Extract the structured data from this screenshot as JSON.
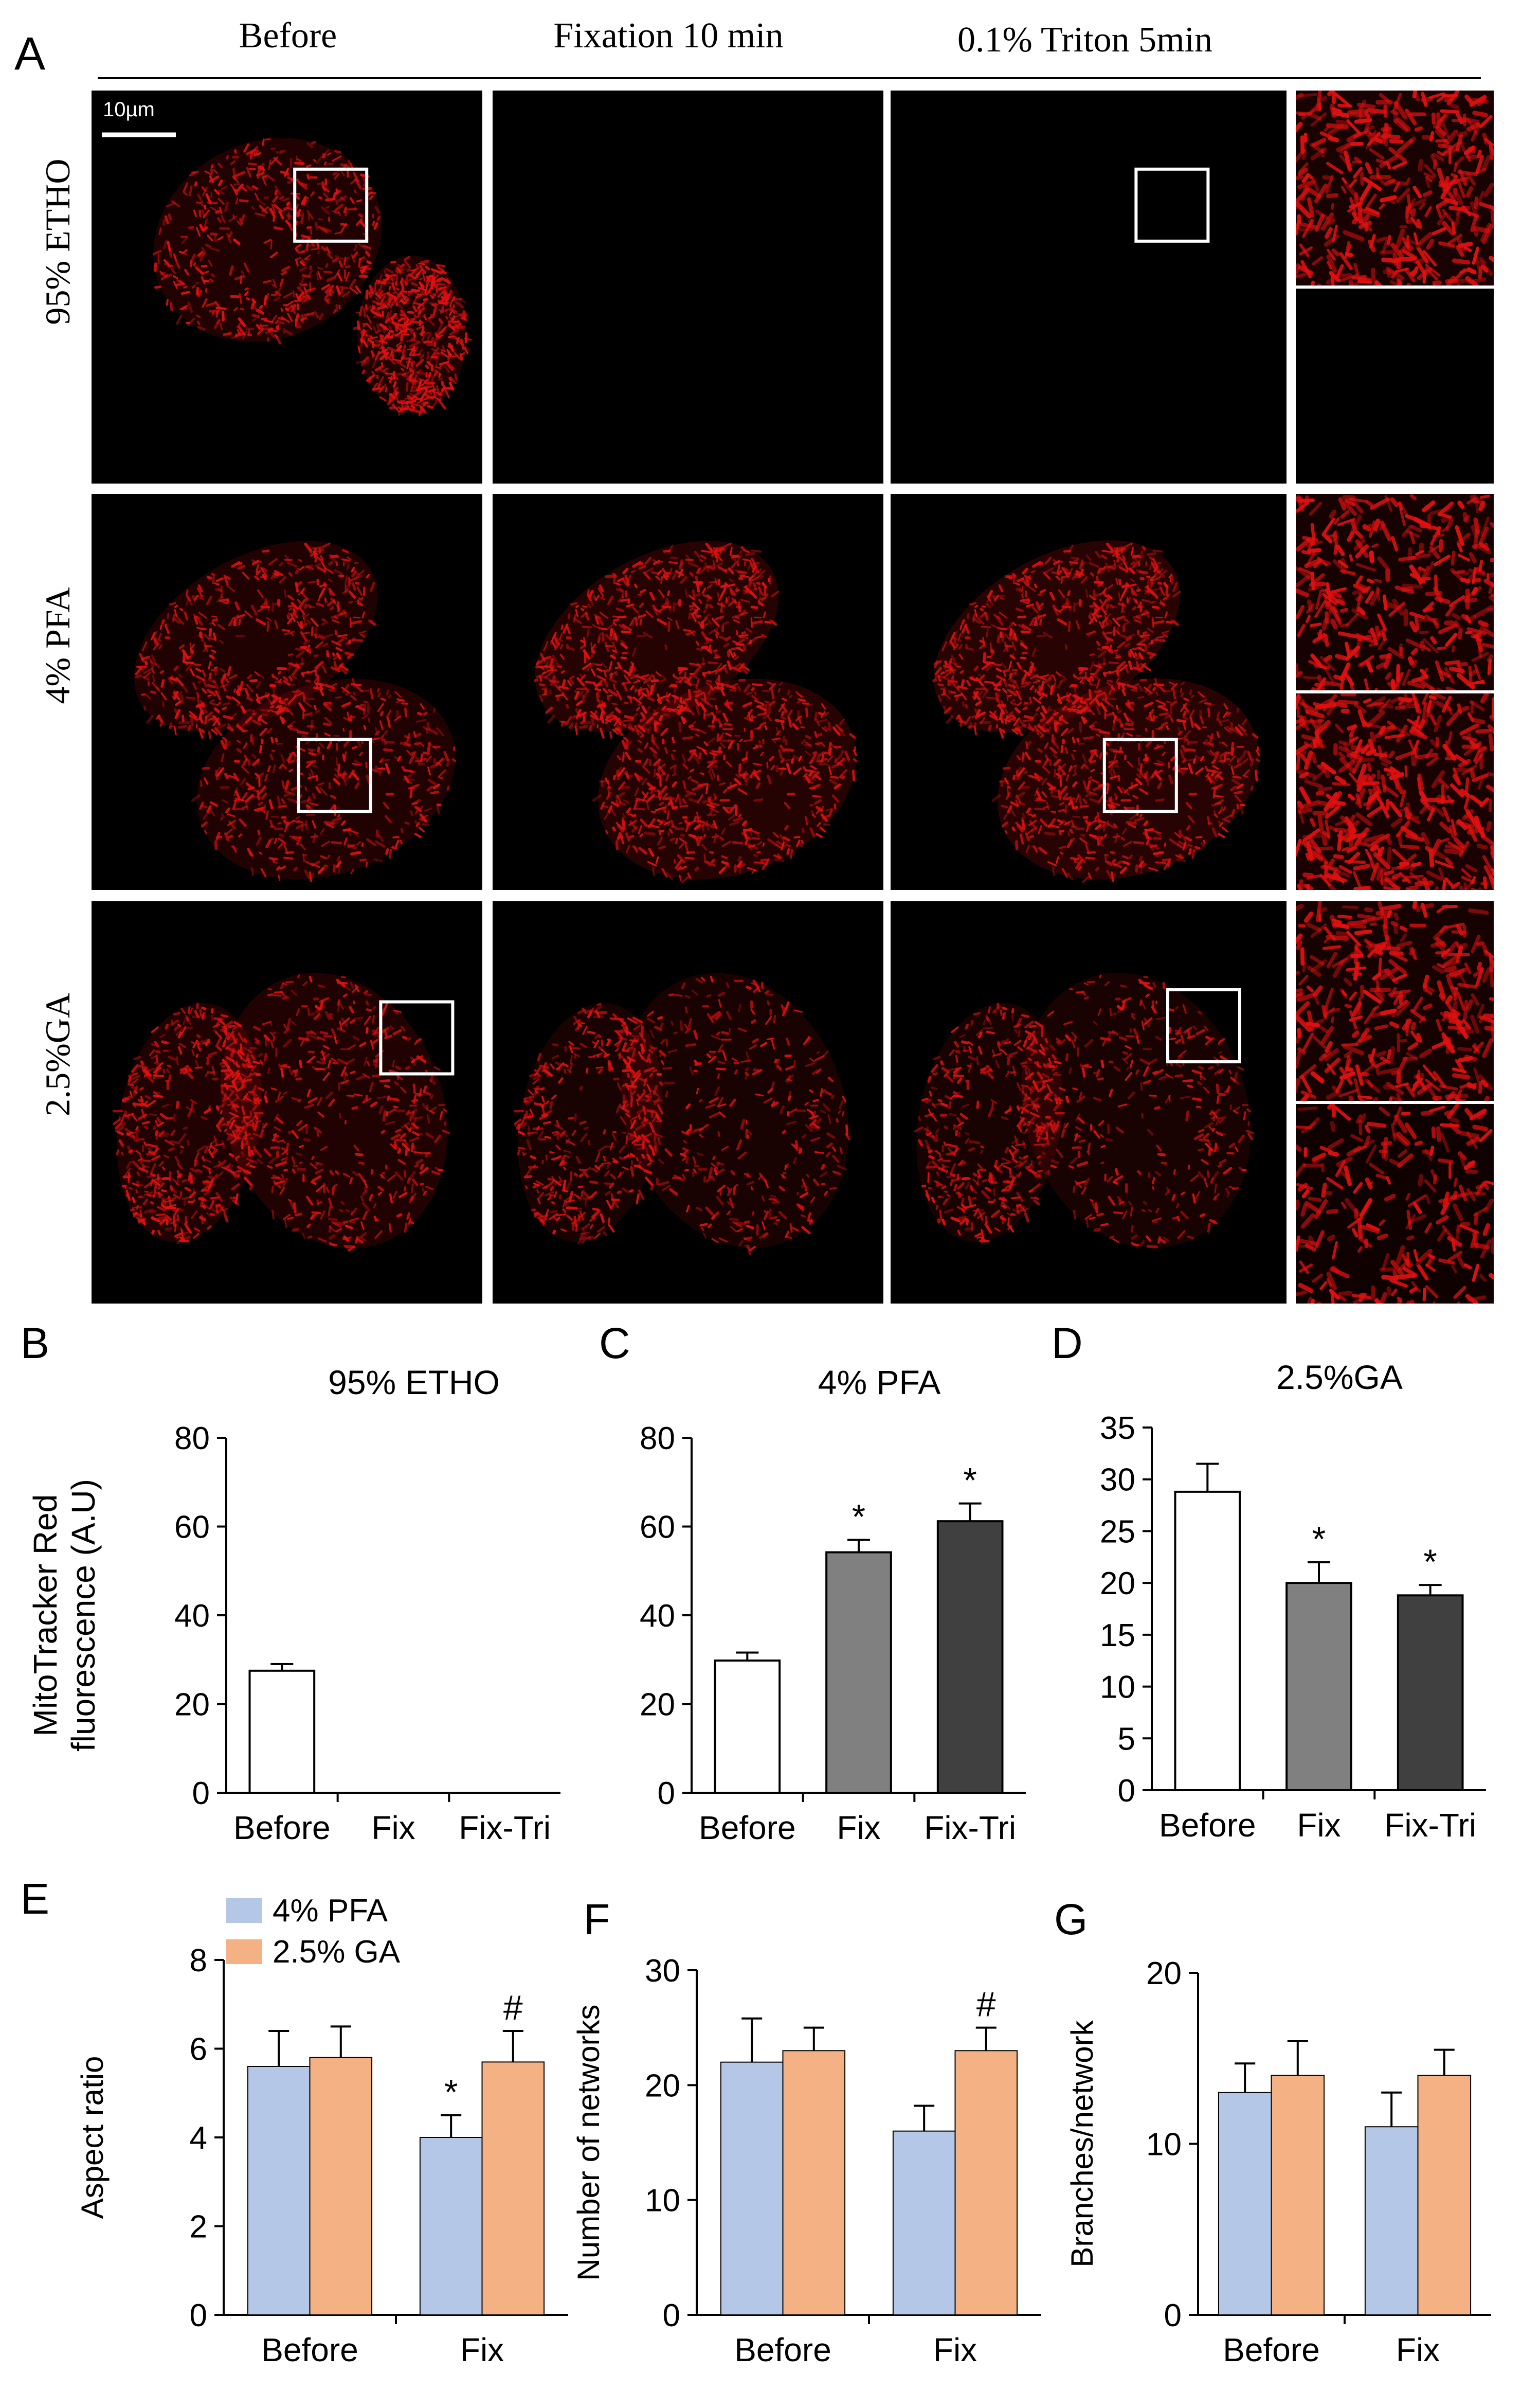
{
  "figure": {
    "panel_letters": {
      "A": "A",
      "B": "B",
      "C": "C",
      "D": "D",
      "E": "E",
      "F": "F",
      "G": "G"
    },
    "microscopy": {
      "columns": [
        "Before",
        "Fixation 10 min",
        "0.1% Triton 5min"
      ],
      "rows": [
        "95% ETHO",
        "4% PFA",
        "2.5%GA"
      ],
      "scale_bar": "10µm",
      "colors": {
        "stain": "#e01010",
        "background": "#000000",
        "box": "#ffffff"
      },
      "row_signal": [
        {
          "before": 0.8,
          "fixation": 0.0,
          "triton": 0.0,
          "inset_top": 0.9,
          "inset_bottom": 0.0
        },
        {
          "before": 0.75,
          "fixation": 0.95,
          "triton": 1.0,
          "inset_top": 0.8,
          "inset_bottom": 1.0
        },
        {
          "before": 0.8,
          "fixation": 0.6,
          "triton": 0.6,
          "inset_top": 0.8,
          "inset_bottom": 0.55
        }
      ]
    },
    "ylabel_shared": "MitoTracker Red fluorescence (A.U)",
    "legend": [
      "4% PFA",
      "2.5% GA"
    ]
  },
  "chart_data": [
    {
      "panel": "B",
      "type": "bar",
      "title": "95% ETHO",
      "ylabel": "MitoTracker Red fluorescence (A.U)",
      "ylabel_lines": [
        "MitoTracker Red",
        "fluorescence (A.U)"
      ],
      "categories": [
        "Before",
        "Fix",
        "Fix-Tri"
      ],
      "values": [
        27.5,
        0,
        0
      ],
      "errors": [
        1.5,
        0,
        0
      ],
      "bar_colors": [
        "#ffffff",
        "#ffffff",
        "#ffffff"
      ],
      "ylim": [
        0,
        80
      ],
      "yticks": [
        0,
        20,
        40,
        60,
        80
      ],
      "annotations": [
        "",
        "",
        ""
      ]
    },
    {
      "panel": "C",
      "type": "bar",
      "title": "4% PFA",
      "ylabel": "",
      "categories": [
        "Before",
        "Fix",
        "Fix-Tri"
      ],
      "values": [
        29.8,
        54.2,
        61.2
      ],
      "errors": [
        1.8,
        2.8,
        4.0
      ],
      "bar_colors": [
        "#ffffff",
        "#808080",
        "#404040"
      ],
      "ylim": [
        0,
        80
      ],
      "yticks": [
        0,
        20,
        40,
        60,
        80
      ],
      "annotations": [
        "",
        "*",
        "*"
      ]
    },
    {
      "panel": "D",
      "type": "bar",
      "title": "2.5%GA",
      "ylabel": "",
      "categories": [
        "Before",
        "Fix",
        "Fix-Tri"
      ],
      "values": [
        28.8,
        20.0,
        18.8
      ],
      "errors": [
        2.7,
        2.0,
        1.0
      ],
      "bar_colors": [
        "#ffffff",
        "#808080",
        "#404040"
      ],
      "ylim": [
        0,
        35
      ],
      "yticks": [
        0,
        5,
        10,
        15,
        20,
        25,
        30,
        35
      ],
      "annotations": [
        "",
        "*",
        "*"
      ]
    },
    {
      "panel": "E",
      "type": "bar",
      "title": "",
      "ylabel": "Aspect ratio",
      "categories": [
        "Before",
        "Fix"
      ],
      "series": [
        {
          "name": "4% PFA",
          "color": "#b4c7e7",
          "values": [
            5.6,
            4.0
          ],
          "errors": [
            0.8,
            0.5
          ],
          "annotations": [
            "",
            "*"
          ]
        },
        {
          "name": "2.5% GA",
          "color": "#f4b183",
          "values": [
            5.8,
            5.7
          ],
          "errors": [
            0.7,
            0.7
          ],
          "annotations": [
            "",
            "#"
          ]
        }
      ],
      "ylim": [
        0,
        8
      ],
      "yticks": [
        0,
        2,
        4,
        6,
        8
      ],
      "legend": "top-left"
    },
    {
      "panel": "F",
      "type": "bar",
      "title": "",
      "ylabel": "Number of networks",
      "categories": [
        "Before",
        "Fix"
      ],
      "series": [
        {
          "name": "4% PFA",
          "color": "#b4c7e7",
          "values": [
            22,
            16
          ],
          "errors": [
            3.8,
            2.2
          ],
          "annotations": [
            "",
            ""
          ]
        },
        {
          "name": "2.5% GA",
          "color": "#f4b183",
          "values": [
            23,
            23
          ],
          "errors": [
            2.0,
            2.0
          ],
          "annotations": [
            "",
            "#"
          ]
        }
      ],
      "ylim": [
        0,
        30
      ],
      "yticks": [
        0,
        10,
        20,
        30
      ]
    },
    {
      "panel": "G",
      "type": "bar",
      "title": "",
      "ylabel": "Branches/network",
      "categories": [
        "Before",
        "Fix"
      ],
      "series": [
        {
          "name": "4% PFA",
          "color": "#b4c7e7",
          "values": [
            13,
            11
          ],
          "errors": [
            1.7,
            2.0
          ],
          "annotations": [
            "",
            ""
          ]
        },
        {
          "name": "2.5% GA",
          "color": "#f4b183",
          "values": [
            14,
            14
          ],
          "errors": [
            2.0,
            1.5
          ],
          "annotations": [
            "",
            ""
          ]
        }
      ],
      "ylim": [
        0,
        20
      ],
      "yticks": [
        0,
        10,
        20
      ]
    }
  ]
}
